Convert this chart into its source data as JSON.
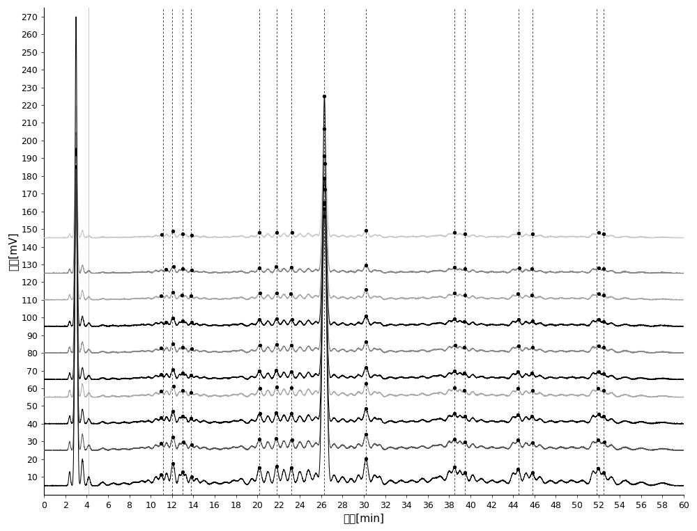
{
  "xlim": [
    0,
    60
  ],
  "ylim": [
    0,
    275
  ],
  "xlabel": "时间[min]",
  "ylabel": "信号[mV]",
  "yticks": [
    10,
    20,
    30,
    40,
    50,
    60,
    70,
    80,
    90,
    100,
    110,
    120,
    130,
    140,
    150,
    160,
    170,
    180,
    190,
    200,
    210,
    220,
    230,
    240,
    250,
    260,
    270
  ],
  "xticks": [
    0,
    2,
    4,
    6,
    8,
    10,
    12,
    14,
    16,
    18,
    20,
    22,
    24,
    26,
    28,
    30,
    32,
    34,
    36,
    38,
    40,
    42,
    44,
    46,
    48,
    50,
    52,
    54,
    56,
    58,
    60
  ],
  "dashed_vlines": [
    11.2,
    12.0,
    13.0,
    13.8,
    20.2,
    21.8,
    23.2,
    26.3,
    30.2,
    38.5,
    39.5,
    44.5,
    45.8,
    51.8,
    52.5
  ],
  "background_color": "#ffffff",
  "tick_fontsize": 9,
  "label_fontsize": 11,
  "linewidth": 0.75,
  "offsets": [
    5,
    25,
    40,
    55,
    65,
    80,
    95,
    110,
    125,
    145
  ],
  "colors": [
    "#000000",
    "#555555",
    "#000000",
    "#aaaaaa",
    "#000000",
    "#888888",
    "#000000",
    "#aaaaaa",
    "#888888",
    "#cccccc"
  ],
  "peak_scale": [
    1.0,
    0.6,
    0.55,
    0.5,
    0.45,
    0.42,
    0.38,
    0.35,
    0.3,
    0.28
  ]
}
